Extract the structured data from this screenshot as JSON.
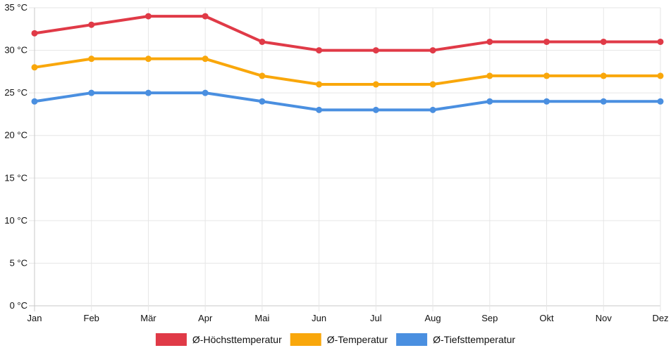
{
  "chart_data": {
    "type": "line",
    "title": "",
    "xlabel": "",
    "ylabel": "",
    "categories": [
      "Jan",
      "Feb",
      "Mär",
      "Apr",
      "Mai",
      "Jun",
      "Jul",
      "Aug",
      "Sep",
      "Okt",
      "Nov",
      "Dez"
    ],
    "ylim": [
      0,
      35
    ],
    "y_ticks": [
      0,
      5,
      10,
      15,
      20,
      25,
      30,
      35
    ],
    "y_tick_labels": [
      "0 °C",
      "5 °C",
      "10 °C",
      "15 °C",
      "20 °C",
      "25 °C",
      "30 °C",
      "35 °C"
    ],
    "grid": true,
    "legend_position": "bottom-center",
    "series": [
      {
        "name": "Ø-Höchsttemperatur",
        "color": "#e03a47",
        "values": [
          32,
          33,
          34,
          34,
          31,
          30,
          30,
          30,
          31,
          31,
          31,
          31
        ]
      },
      {
        "name": "Ø-Temperatur",
        "color": "#f9a70b",
        "values": [
          28,
          29,
          29,
          29,
          27,
          26,
          26,
          26,
          27,
          27,
          27,
          27
        ]
      },
      {
        "name": "Ø-Tiefsttemperatur",
        "color": "#4a8fe0",
        "values": [
          24,
          25,
          25,
          25,
          24,
          23,
          23,
          23,
          24,
          24,
          24,
          24
        ]
      }
    ]
  }
}
